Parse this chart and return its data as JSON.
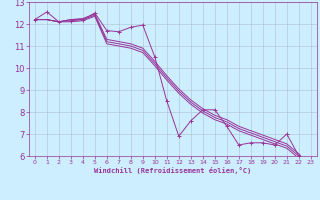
{
  "xlabel": "Windchill (Refroidissement éolien,°C)",
  "bg_color": "#cceeff",
  "line_color": "#993399",
  "grid_color": "#aabbcc",
  "x_values": [
    0,
    1,
    2,
    3,
    4,
    5,
    6,
    7,
    8,
    9,
    10,
    11,
    12,
    13,
    14,
    15,
    16,
    17,
    18,
    19,
    20,
    21,
    22,
    23
  ],
  "line1": [
    12.2,
    12.55,
    12.1,
    12.15,
    12.2,
    12.5,
    11.7,
    11.65,
    11.85,
    11.95,
    10.5,
    8.5,
    6.9,
    7.6,
    8.1,
    8.1,
    7.35,
    6.5,
    6.6,
    6.6,
    6.5,
    7.0,
    6.0,
    5.5
  ],
  "line2": [
    12.2,
    12.2,
    12.1,
    12.2,
    12.25,
    12.45,
    11.3,
    11.2,
    11.1,
    10.9,
    10.3,
    9.65,
    9.05,
    8.55,
    8.15,
    7.85,
    7.65,
    7.35,
    7.15,
    6.95,
    6.75,
    6.55,
    6.1,
    5.5
  ],
  "line3": [
    12.2,
    12.2,
    12.1,
    12.2,
    12.2,
    12.4,
    11.2,
    11.1,
    11.0,
    10.8,
    10.2,
    9.55,
    8.95,
    8.45,
    8.05,
    7.75,
    7.55,
    7.25,
    7.05,
    6.85,
    6.65,
    6.45,
    6.0,
    5.5
  ],
  "line4": [
    12.2,
    12.2,
    12.1,
    12.1,
    12.15,
    12.35,
    11.1,
    11.0,
    10.9,
    10.7,
    10.1,
    9.45,
    8.85,
    8.35,
    7.95,
    7.65,
    7.45,
    7.15,
    6.95,
    6.75,
    6.55,
    6.35,
    5.9,
    5.5
  ],
  "ylim": [
    6,
    13
  ],
  "xlim": [
    -0.5,
    23.5
  ],
  "yticks": [
    6,
    7,
    8,
    9,
    10,
    11,
    12,
    13
  ],
  "xticks": [
    0,
    1,
    2,
    3,
    4,
    5,
    6,
    7,
    8,
    9,
    10,
    11,
    12,
    13,
    14,
    15,
    16,
    17,
    18,
    19,
    20,
    21,
    22,
    23
  ]
}
